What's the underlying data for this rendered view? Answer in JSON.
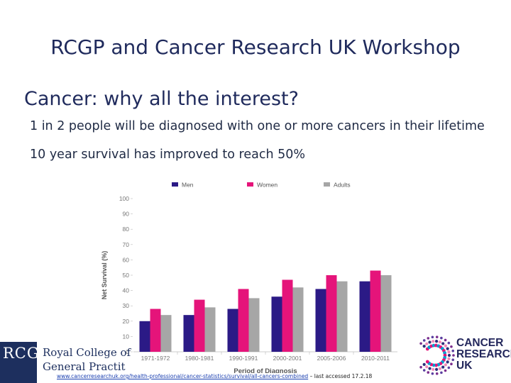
{
  "slide": {
    "title": "RCGP and Cancer Research UK Workshop",
    "subtitle": "Cancer: why all the interest?",
    "bullets": [
      "1 in 2 people will be diagnosed with one or more cancers in their lifetime",
      "10 year survival has improved to reach 50%"
    ],
    "source_link": "www.cancerresearchuk.org/health-professional/cancer-statistics/survival/all-cancers-combined",
    "source_suffix": " – last accessed 17.2.18"
  },
  "logos": {
    "rcgp_mark": "RCGP",
    "rcgp_name_line1": "Royal College of",
    "rcgp_name_line2": "General Practit",
    "cruk_line1": "CANCER",
    "cruk_line2": "RESEARCH",
    "cruk_line3": "UK"
  },
  "chart_data": {
    "type": "bar",
    "title": "",
    "xlabel": "Period of Diagnosis",
    "ylabel": "Net Survival (%)",
    "ylim": [
      0,
      100
    ],
    "yticks": [
      0,
      10,
      20,
      30,
      40,
      50,
      60,
      70,
      80,
      90,
      100
    ],
    "categories": [
      "1971-1972",
      "1980-1981",
      "1990-1991",
      "2000-2001",
      "2005-2006",
      "2010-2011"
    ],
    "series": [
      {
        "name": "Men",
        "color": "#2b1a86",
        "values": [
          20,
          24,
          28,
          36,
          41,
          46
        ]
      },
      {
        "name": "Women",
        "color": "#e5147a",
        "values": [
          28,
          34,
          41,
          47,
          50,
          53
        ]
      },
      {
        "name": "Adults",
        "color": "#a6a6a6",
        "values": [
          24,
          29,
          35,
          42,
          46,
          50
        ]
      }
    ],
    "grid": false,
    "legend": "top"
  },
  "colors": {
    "title_text": "#1f2a5c",
    "rcgp_navy": "#1d2f5e",
    "cruk_navy": "#23275c",
    "cruk_magenta": "#e5147a"
  }
}
